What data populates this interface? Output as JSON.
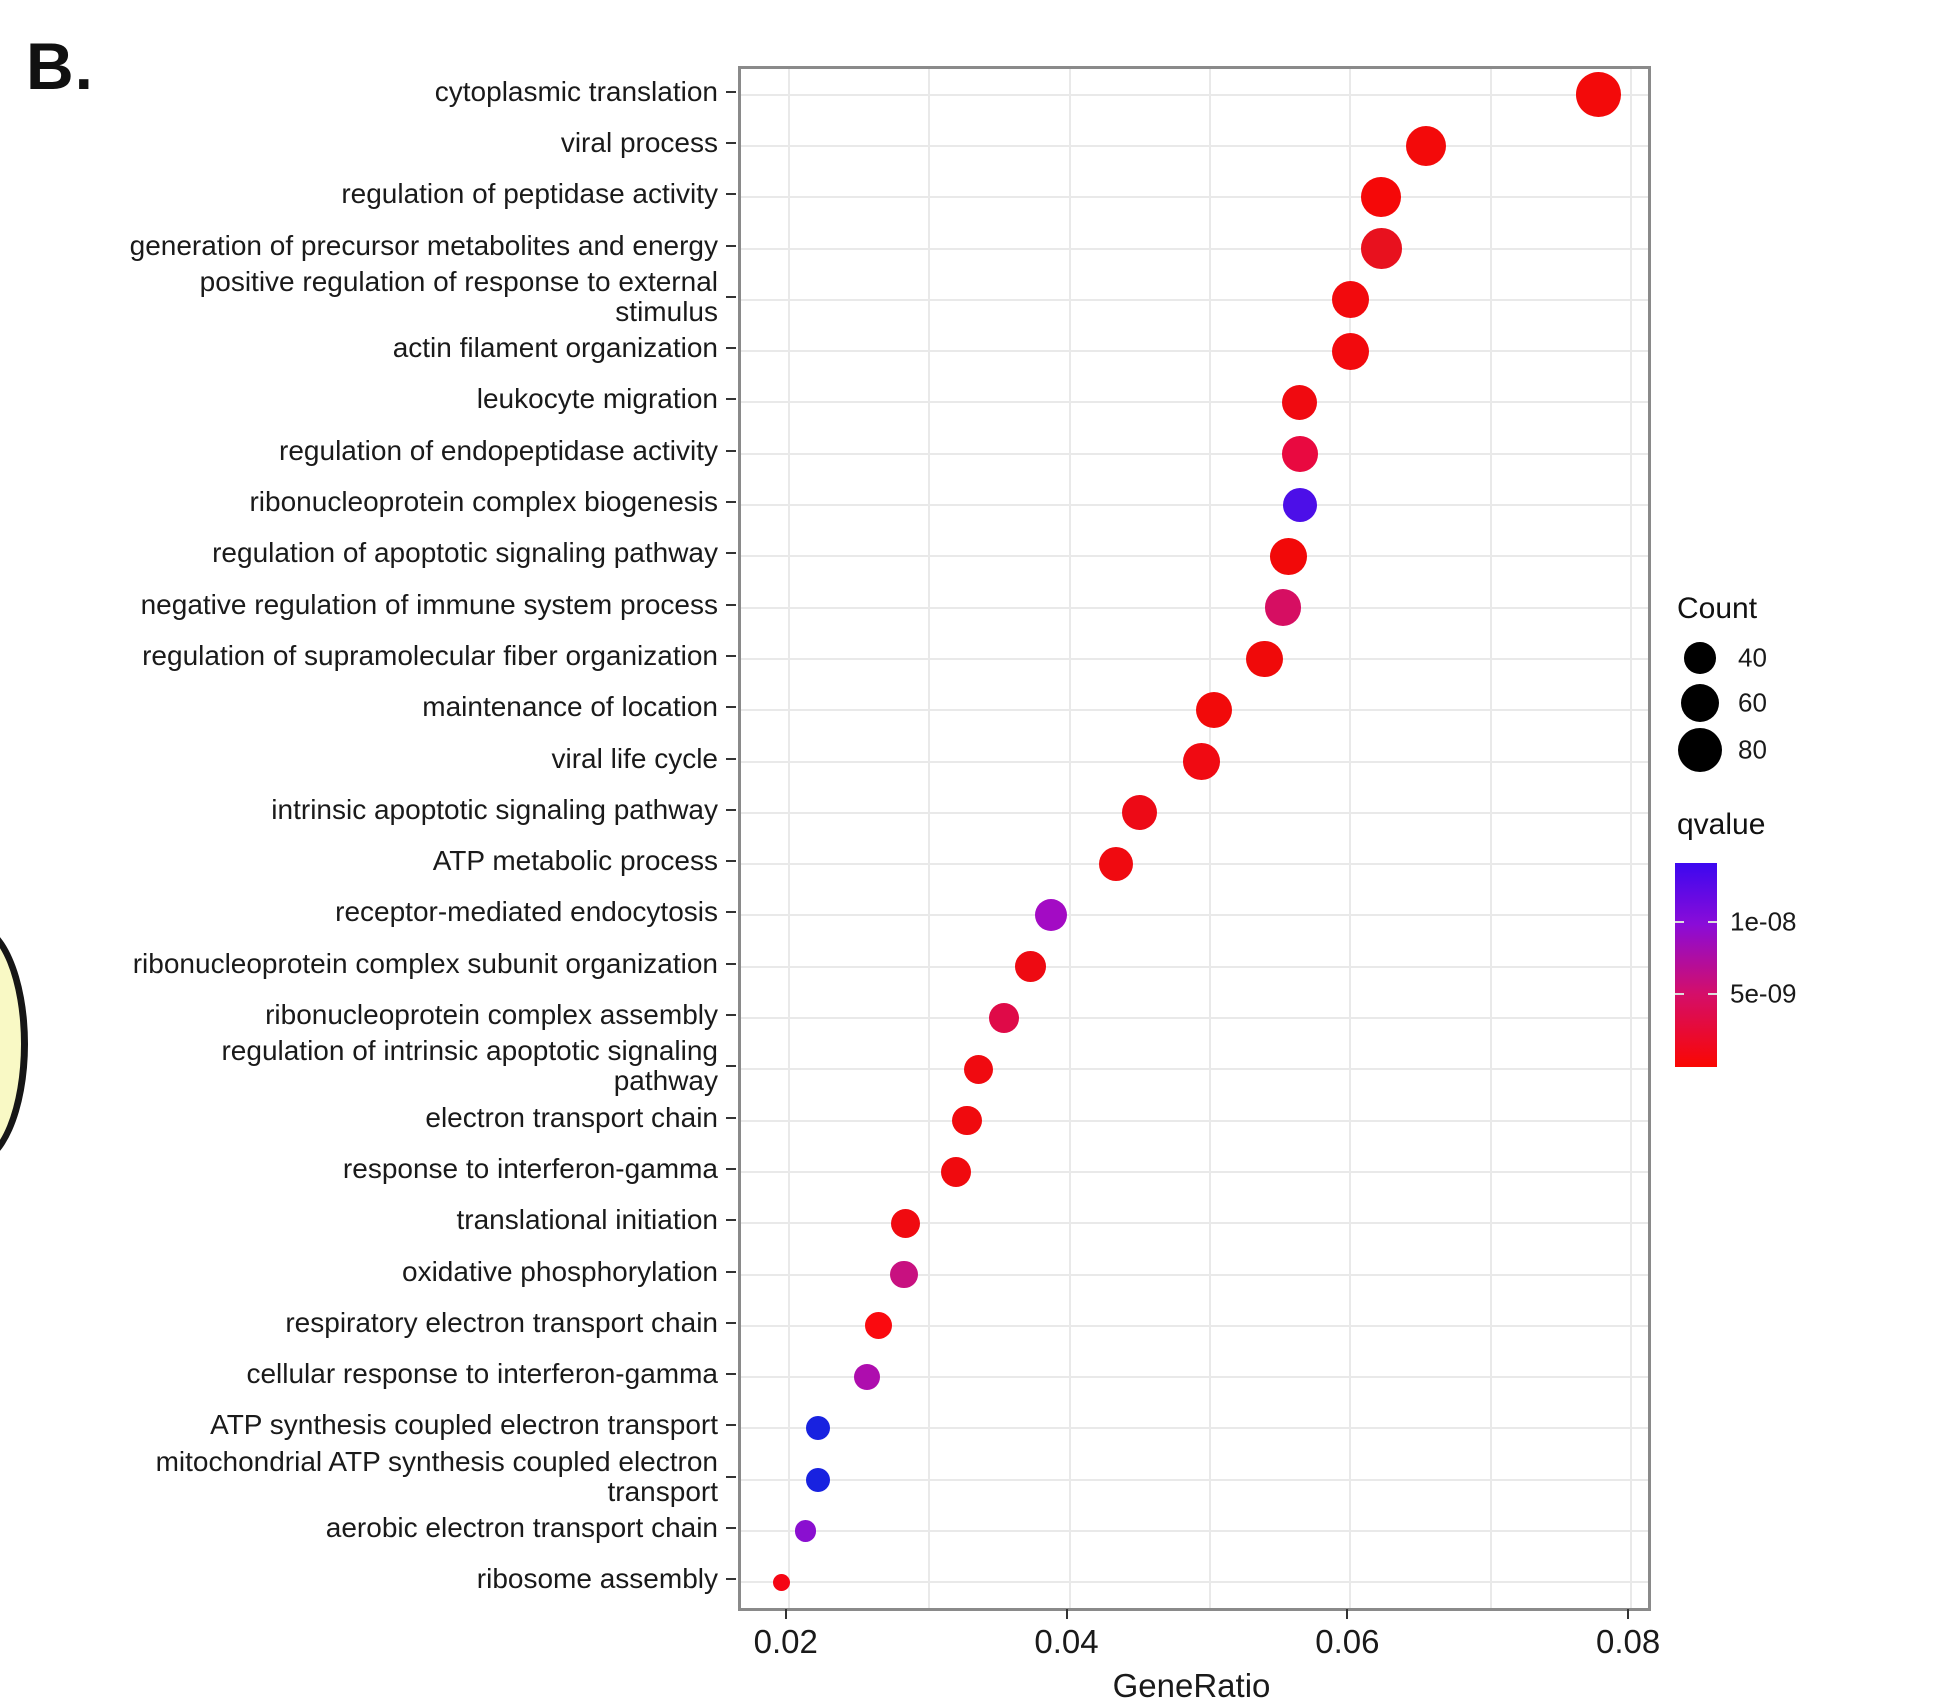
{
  "figure": {
    "panel_label": "B."
  },
  "chart_data": {
    "type": "scatter",
    "title": "",
    "xlabel": "GeneRatio",
    "ylabel": "",
    "xlim": [
      0.0166,
      0.0812
    ],
    "grid": true,
    "x_ticks": [
      {
        "label": "0.02",
        "value": 0.02
      },
      {
        "label": "0.04",
        "value": 0.04
      },
      {
        "label": "0.06",
        "value": 0.06
      },
      {
        "label": "0.08",
        "value": 0.08
      }
    ],
    "x_minor_gridlines": [
      0.03,
      0.05,
      0.07
    ],
    "encoding": {
      "x": "GeneRatio",
      "y": "GO term",
      "size": "Count",
      "color": "qvalue"
    },
    "points": [
      {
        "term": "cytoplasmic translation",
        "label_lines": [
          "cytoplasmic translation"
        ],
        "gene_ratio": 0.0777,
        "count": 80,
        "color": "#f30a0a"
      },
      {
        "term": "viral process",
        "label_lines": [
          "viral process"
        ],
        "gene_ratio": 0.0654,
        "count": 64,
        "color": "#f30a0a"
      },
      {
        "term": "regulation of peptidase activity",
        "label_lines": [
          "regulation of peptidase activity"
        ],
        "gene_ratio": 0.0622,
        "count": 63,
        "color": "#f50808"
      },
      {
        "term": "generation of precursor metabolites and energy",
        "label_lines": [
          "generation of precursor metabolites and energy"
        ],
        "gene_ratio": 0.0622,
        "count": 66,
        "color": "#e8111e"
      },
      {
        "term": "positive regulation of response to external stimulus",
        "label_lines": [
          "positive regulation of response to external",
          "stimulus"
        ],
        "gene_ratio": 0.06,
        "count": 55,
        "color": "#f20a0d"
      },
      {
        "term": "actin filament organization",
        "label_lines": [
          "actin filament organization"
        ],
        "gene_ratio": 0.06,
        "count": 55,
        "color": "#f20a0d"
      },
      {
        "term": "leukocyte migration",
        "label_lines": [
          "leukocyte migration"
        ],
        "gene_ratio": 0.0564,
        "count": 49,
        "color": "#f00a10"
      },
      {
        "term": "regulation of endopeptidase activity",
        "label_lines": [
          "regulation of endopeptidase activity"
        ],
        "gene_ratio": 0.0564,
        "count": 51,
        "color": "#e90940"
      },
      {
        "term": "ribonucleoprotein complex biogenesis",
        "label_lines": [
          "ribonucleoprotein complex biogenesis"
        ],
        "gene_ratio": 0.0564,
        "count": 46,
        "color": "#4c0fe8"
      },
      {
        "term": "regulation of apoptotic signaling pathway",
        "label_lines": [
          "regulation of apoptotic signaling pathway"
        ],
        "gene_ratio": 0.0556,
        "count": 54,
        "color": "#f20909"
      },
      {
        "term": "negative regulation of immune system process",
        "label_lines": [
          "negative regulation of immune system process"
        ],
        "gene_ratio": 0.0552,
        "count": 54,
        "color": "#d60e62"
      },
      {
        "term": "regulation of supramolecular fiber organization",
        "label_lines": [
          "regulation of supramolecular fiber organization"
        ],
        "gene_ratio": 0.0539,
        "count": 54,
        "color": "#f00a0a"
      },
      {
        "term": "maintenance of location",
        "label_lines": [
          "maintenance of location"
        ],
        "gene_ratio": 0.0503,
        "count": 52,
        "color": "#f20a0a"
      },
      {
        "term": "viral life cycle",
        "label_lines": [
          "viral life cycle"
        ],
        "gene_ratio": 0.0494,
        "count": 54,
        "color": "#f00a12"
      },
      {
        "term": "intrinsic apoptotic signaling pathway",
        "label_lines": [
          "intrinsic apoptotic signaling pathway"
        ],
        "gene_ratio": 0.045,
        "count": 49,
        "color": "#ed0a16"
      },
      {
        "term": "ATP metabolic process",
        "label_lines": [
          "ATP metabolic process"
        ],
        "gene_ratio": 0.0433,
        "count": 46,
        "color": "#f00a10"
      },
      {
        "term": "receptor-mediated endocytosis",
        "label_lines": [
          "receptor-mediated endocytosis"
        ],
        "gene_ratio": 0.0387,
        "count": 41,
        "color": "#a30bc4"
      },
      {
        "term": "ribonucleoprotein complex subunit organization",
        "label_lines": [
          "ribonucleoprotein complex subunit organization"
        ],
        "gene_ratio": 0.0372,
        "count": 38,
        "color": "#ee0a12"
      },
      {
        "term": "ribonucleoprotein complex assembly",
        "label_lines": [
          "ribonucleoprotein complex assembly"
        ],
        "gene_ratio": 0.0353,
        "count": 36,
        "color": "#df0a48"
      },
      {
        "term": "regulation of intrinsic apoptotic signaling pathway",
        "label_lines": [
          "regulation of intrinsic apoptotic signaling",
          "pathway"
        ],
        "gene_ratio": 0.0335,
        "count": 34,
        "color": "#f00a10"
      },
      {
        "term": "electron transport chain",
        "label_lines": [
          "electron transport chain"
        ],
        "gene_ratio": 0.0327,
        "count": 34,
        "color": "#f00a0e"
      },
      {
        "term": "response to interferon-gamma",
        "label_lines": [
          "response to interferon-gamma"
        ],
        "gene_ratio": 0.0319,
        "count": 36,
        "color": "#f00a0e"
      },
      {
        "term": "translational initiation",
        "label_lines": [
          "translational initiation"
        ],
        "gene_ratio": 0.0283,
        "count": 34,
        "color": "#f00a10"
      },
      {
        "term": "oxidative phosphorylation",
        "label_lines": [
          "oxidative phosphorylation"
        ],
        "gene_ratio": 0.0282,
        "count": 31,
        "color": "#c81180"
      },
      {
        "term": "respiratory electron transport chain",
        "label_lines": [
          "respiratory electron transport chain"
        ],
        "gene_ratio": 0.0264,
        "count": 29,
        "color": "#fa0a0f"
      },
      {
        "term": "cellular response to interferon-gamma",
        "label_lines": [
          "cellular response to interferon-gamma"
        ],
        "gene_ratio": 0.0256,
        "count": 27,
        "color": "#ae0dae"
      },
      {
        "term": "ATP synthesis coupled electron transport",
        "label_lines": [
          "ATP synthesis coupled electron transport"
        ],
        "gene_ratio": 0.0221,
        "count": 23,
        "color": "#1822e0"
      },
      {
        "term": "mitochondrial ATP synthesis coupled electron transport",
        "label_lines": [
          "mitochondrial ATP synthesis coupled electron",
          "transport"
        ],
        "gene_ratio": 0.0221,
        "count": 23,
        "color": "#1822e0"
      },
      {
        "term": "aerobic electron transport chain",
        "label_lines": [
          "aerobic electron transport chain"
        ],
        "gene_ratio": 0.0212,
        "count": 19,
        "color": "#8a0fd0"
      },
      {
        "term": "ribosome assembly",
        "label_lines": [
          "ribosome assembly"
        ],
        "gene_ratio": 0.0195,
        "count": 12,
        "color": "#f50514"
      }
    ]
  },
  "legend": {
    "count": {
      "title": "Count",
      "entries": [
        {
          "label": "40",
          "count": 40
        },
        {
          "label": "60",
          "count": 60
        },
        {
          "label": "80",
          "count": 80
        }
      ]
    },
    "qvalue": {
      "title": "qvalue",
      "ticks": [
        {
          "label": "1e-08",
          "pos": 0.29
        },
        {
          "label": "5e-09",
          "pos": 0.64
        }
      ],
      "gradient_stops": [
        "#3c08f0",
        "#8a0cd8",
        "#d40e6a",
        "#fa0702"
      ]
    }
  },
  "colors": {
    "panel_border": "#8a8a8a",
    "gridline": "#e9e9e9",
    "dot_red_low_qvalue": "#f30a0a",
    "dot_blue_high_qvalue": "#1822e0"
  }
}
